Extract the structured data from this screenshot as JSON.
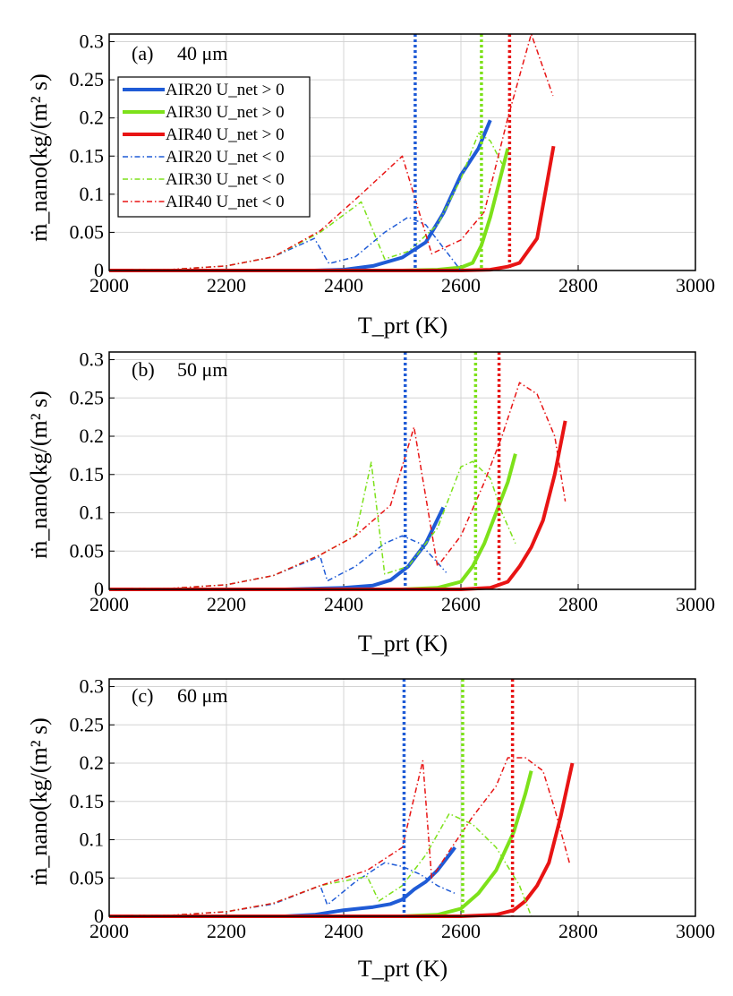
{
  "figure": {
    "legend_entries": [
      "AIR20 U_net > 0",
      "AIR30 U_net > 0",
      "AIR40 U_net > 0",
      "AIR20 U_net < 0",
      "AIR30 U_net < 0",
      "AIR40 U_net < 0"
    ]
  },
  "chart_data": [
    {
      "type": "line",
      "panel": "(a)",
      "size": "40 μm",
      "xlabel": "T_prt (K)",
      "ylabel": "ṁ_nano(kg/(m² s)",
      "xlim": [
        2000,
        3000
      ],
      "ylim": [
        0,
        0.31
      ],
      "xticks": [
        "2000",
        "2200",
        "2400",
        "2600",
        "2800",
        "3000"
      ],
      "yticks": [
        "0",
        "0.05",
        "0.1",
        "0.15",
        "0.2",
        "0.25",
        "0.3"
      ],
      "grid": true,
      "legend_position": "top-left",
      "vlines": [
        {
          "x": 2522,
          "color": "#1f5bd6"
        },
        {
          "x": 2635,
          "color": "#7de11a"
        },
        {
          "x": 2683,
          "color": "#e81414"
        }
      ],
      "series": [
        {
          "name": "AIR20 U_net > 0",
          "color": "#1f5bd6",
          "style": "solid",
          "x": [
            2000,
            2200,
            2350,
            2400,
            2450,
            2500,
            2540,
            2570,
            2600,
            2630,
            2650
          ],
          "y": [
            0,
            0,
            0,
            0.001,
            0.006,
            0.017,
            0.037,
            0.075,
            0.125,
            0.16,
            0.197
          ]
        },
        {
          "name": "AIR30 U_net > 0",
          "color": "#7de11a",
          "style": "solid",
          "x": [
            2000,
            2400,
            2500,
            2560,
            2600,
            2620,
            2635,
            2650,
            2665,
            2680
          ],
          "y": [
            0,
            0,
            0,
            0.001,
            0.004,
            0.01,
            0.033,
            0.07,
            0.115,
            0.16
          ]
        },
        {
          "name": "AIR40 U_net > 0",
          "color": "#e81414",
          "style": "solid",
          "x": [
            2000,
            2500,
            2600,
            2650,
            2680,
            2700,
            2730,
            2758
          ],
          "y": [
            0,
            0,
            0,
            0.001,
            0.005,
            0.01,
            0.042,
            0.163
          ]
        },
        {
          "name": "AIR20 U_net < 0",
          "color": "#1f5bd6",
          "style": "dashdot",
          "x": [
            2000,
            2100,
            2200,
            2280,
            2350,
            2375,
            2420,
            2470,
            2510,
            2540,
            2570,
            2590,
            2600
          ],
          "y": [
            0,
            0.001,
            0.006,
            0.018,
            0.042,
            0.009,
            0.018,
            0.05,
            0.07,
            0.06,
            0.03,
            0.01,
            0
          ]
        },
        {
          "name": "AIR30 U_net < 0",
          "color": "#7de11a",
          "style": "dashdot",
          "x": [
            2000,
            2100,
            2200,
            2280,
            2360,
            2430,
            2470,
            2510,
            2560,
            2600,
            2630,
            2650,
            2670
          ],
          "y": [
            0,
            0.001,
            0.006,
            0.018,
            0.05,
            0.09,
            0.015,
            0.025,
            0.06,
            0.12,
            0.18,
            0.17,
            0.14
          ]
        },
        {
          "name": "AIR40 U_net < 0",
          "color": "#e81414",
          "style": "dashdot",
          "x": [
            2000,
            2100,
            2200,
            2280,
            2360,
            2430,
            2500,
            2550,
            2600,
            2640,
            2680,
            2720,
            2757
          ],
          "y": [
            0,
            0.001,
            0.006,
            0.018,
            0.052,
            0.1,
            0.15,
            0.022,
            0.04,
            0.077,
            0.2,
            0.31,
            0.229
          ]
        }
      ]
    },
    {
      "type": "line",
      "panel": "(b)",
      "size": "50 μm",
      "xlabel": "T_prt (K)",
      "ylabel": "ṁ_nano(kg/(m² s)",
      "xlim": [
        2000,
        3000
      ],
      "ylim": [
        0,
        0.31
      ],
      "xticks": [
        "2000",
        "2200",
        "2400",
        "2600",
        "2800",
        "3000"
      ],
      "yticks": [
        "0",
        "0.05",
        "0.1",
        "0.15",
        "0.2",
        "0.25",
        "0.3"
      ],
      "grid": true,
      "vlines": [
        {
          "x": 2505,
          "color": "#1f5bd6"
        },
        {
          "x": 2625,
          "color": "#7de11a"
        },
        {
          "x": 2665,
          "color": "#e81414"
        }
      ],
      "series": [
        {
          "name": "AIR20 U_net > 0",
          "color": "#1f5bd6",
          "style": "solid",
          "x": [
            2000,
            2300,
            2400,
            2450,
            2480,
            2510,
            2540,
            2570
          ],
          "y": [
            0,
            0,
            0.002,
            0.005,
            0.012,
            0.03,
            0.06,
            0.107
          ]
        },
        {
          "name": "AIR30 U_net > 0",
          "color": "#7de11a",
          "style": "solid",
          "x": [
            2000,
            2500,
            2560,
            2600,
            2620,
            2640,
            2660,
            2680,
            2693
          ],
          "y": [
            0,
            0,
            0.002,
            0.01,
            0.03,
            0.06,
            0.1,
            0.14,
            0.177
          ]
        },
        {
          "name": "AIR40 U_net > 0",
          "color": "#e81414",
          "style": "solid",
          "x": [
            2000,
            2600,
            2650,
            2680,
            2700,
            2720,
            2740,
            2760,
            2778
          ],
          "y": [
            0,
            0,
            0.002,
            0.01,
            0.03,
            0.055,
            0.09,
            0.15,
            0.22
          ]
        },
        {
          "name": "AIR20 U_net < 0",
          "color": "#1f5bd6",
          "style": "dashdot",
          "x": [
            2000,
            2100,
            2200,
            2280,
            2360,
            2372,
            2420,
            2470,
            2500,
            2530,
            2560,
            2575
          ],
          "y": [
            0,
            0.001,
            0.006,
            0.018,
            0.043,
            0.011,
            0.03,
            0.06,
            0.07,
            0.06,
            0.035,
            0.022
          ]
        },
        {
          "name": "AIR30 U_net < 0",
          "color": "#7de11a",
          "style": "dashdot",
          "x": [
            2000,
            2100,
            2200,
            2280,
            2360,
            2420,
            2447,
            2470,
            2510,
            2560,
            2600,
            2620,
            2650,
            2670,
            2693
          ],
          "y": [
            0,
            0.001,
            0.006,
            0.018,
            0.045,
            0.07,
            0.166,
            0.02,
            0.03,
            0.08,
            0.16,
            0.167,
            0.145,
            0.1,
            0.06
          ]
        },
        {
          "name": "AIR40 U_net < 0",
          "color": "#e81414",
          "style": "dashdot",
          "x": [
            2000,
            2100,
            2200,
            2280,
            2360,
            2420,
            2480,
            2520,
            2560,
            2600,
            2640,
            2670,
            2700,
            2730,
            2760,
            2778
          ],
          "y": [
            0,
            0.001,
            0.006,
            0.018,
            0.045,
            0.07,
            0.11,
            0.212,
            0.03,
            0.07,
            0.14,
            0.2,
            0.27,
            0.255,
            0.2,
            0.115
          ]
        }
      ]
    },
    {
      "type": "line",
      "panel": "(c)",
      "size": "60 μm",
      "xlabel": "T_prt (K)",
      "ylabel": "ṁ_nano(kg/(m² s)",
      "xlim": [
        2000,
        3000
      ],
      "ylim": [
        0,
        0.31
      ],
      "xticks": [
        "2000",
        "2200",
        "2400",
        "2600",
        "2800",
        "3000"
      ],
      "yticks": [
        "0",
        "0.05",
        "0.1",
        "0.15",
        "0.2",
        "0.25",
        "0.3"
      ],
      "grid": true,
      "vlines": [
        {
          "x": 2503,
          "color": "#1f5bd6"
        },
        {
          "x": 2603,
          "color": "#7de11a"
        },
        {
          "x": 2688,
          "color": "#e81414"
        }
      ],
      "series": [
        {
          "name": "AIR20 U_net > 0",
          "color": "#1f5bd6",
          "style": "solid",
          "x": [
            2000,
            2300,
            2350,
            2400,
            2450,
            2480,
            2500,
            2520,
            2540,
            2560,
            2580,
            2590
          ],
          "y": [
            0,
            0,
            0.002,
            0.008,
            0.012,
            0.016,
            0.022,
            0.035,
            0.045,
            0.06,
            0.08,
            0.09
          ]
        },
        {
          "name": "AIR30 U_net > 0",
          "color": "#7de11a",
          "style": "solid",
          "x": [
            2000,
            2500,
            2560,
            2600,
            2630,
            2660,
            2690,
            2710,
            2720
          ],
          "y": [
            0,
            0,
            0.002,
            0.01,
            0.03,
            0.06,
            0.11,
            0.16,
            0.19
          ]
        },
        {
          "name": "AIR40 U_net > 0",
          "color": "#e81414",
          "style": "solid",
          "x": [
            2000,
            2600,
            2660,
            2690,
            2710,
            2730,
            2750,
            2770,
            2790
          ],
          "y": [
            0,
            0,
            0.002,
            0.008,
            0.02,
            0.04,
            0.07,
            0.13,
            0.2
          ]
        },
        {
          "name": "AIR20 U_net < 0",
          "color": "#1f5bd6",
          "style": "dashdot",
          "x": [
            2000,
            2100,
            2200,
            2280,
            2360,
            2372,
            2420,
            2470,
            2500,
            2530,
            2560,
            2590
          ],
          "y": [
            0,
            0.001,
            0.006,
            0.016,
            0.04,
            0.015,
            0.045,
            0.07,
            0.065,
            0.055,
            0.04,
            0.03
          ]
        },
        {
          "name": "AIR30 U_net < 0",
          "color": "#7de11a",
          "style": "dashdot",
          "x": [
            2000,
            2100,
            2200,
            2280,
            2360,
            2440,
            2460,
            2500,
            2540,
            2580,
            2620,
            2660,
            2700,
            2720
          ],
          "y": [
            0,
            0.001,
            0.006,
            0.017,
            0.04,
            0.052,
            0.02,
            0.04,
            0.08,
            0.134,
            0.12,
            0.09,
            0.04,
            0
          ]
        },
        {
          "name": "AIR40 U_net < 0",
          "color": "#e81414",
          "style": "dashdot",
          "x": [
            2000,
            2100,
            2200,
            2280,
            2360,
            2440,
            2500,
            2535,
            2550,
            2580,
            2620,
            2660,
            2680,
            2710,
            2740,
            2760,
            2785
          ],
          "y": [
            0,
            0.001,
            0.006,
            0.017,
            0.04,
            0.06,
            0.09,
            0.203,
            0.05,
            0.085,
            0.13,
            0.17,
            0.207,
            0.207,
            0.19,
            0.14,
            0.07
          ]
        }
      ]
    }
  ]
}
